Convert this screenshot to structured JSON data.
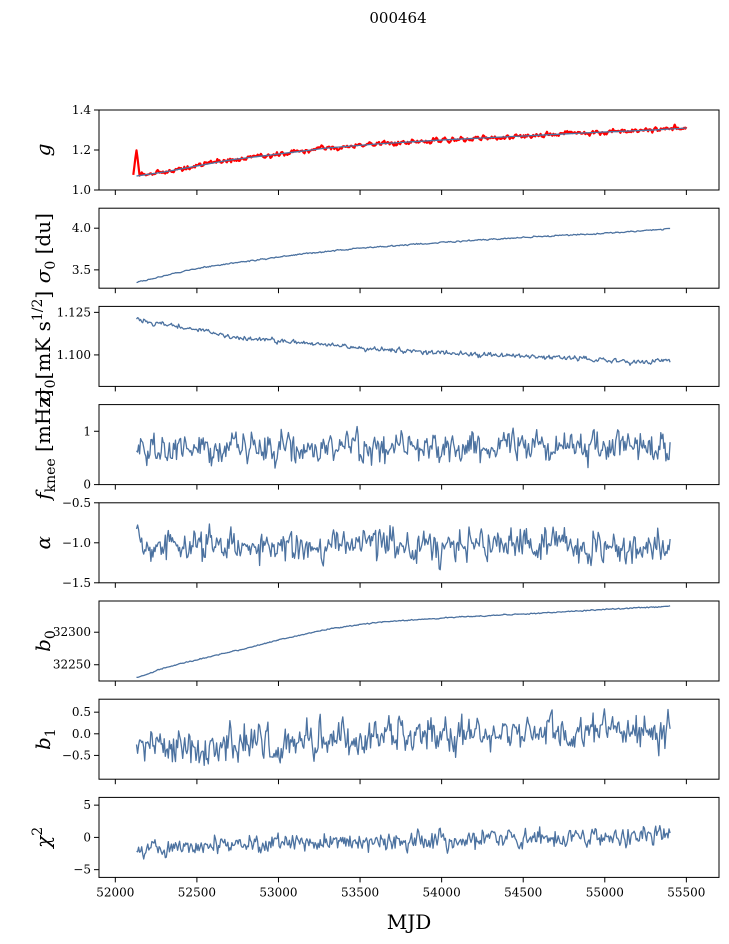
{
  "figure": {
    "title": "000464",
    "xlabel": "MJD",
    "xlim": [
      51900,
      55700
    ],
    "xticks": [
      52000,
      52500,
      53000,
      53500,
      54000,
      54500,
      55000,
      55500
    ],
    "line_color": "#4c72a0",
    "gain_fit_color": "#ff0000"
  },
  "chart_data": [
    {
      "type": "line",
      "ylabel_main": "g",
      "ylim": [
        1.0,
        1.4
      ],
      "yticks": [
        {
          "v": 1.0,
          "t": "1.0"
        },
        {
          "v": 1.2,
          "t": "1.2"
        },
        {
          "v": 1.4,
          "t": "1.4"
        }
      ],
      "series": [
        {
          "color": "#ff0000",
          "noise": 0.006,
          "x": [
            52110,
            52130,
            52150,
            52300,
            52500,
            52700,
            53000,
            53300,
            53600,
            54000,
            54500,
            55000,
            55300,
            55400,
            55500
          ],
          "y": [
            1.07,
            1.19,
            1.07,
            1.09,
            1.12,
            1.15,
            1.18,
            1.21,
            1.23,
            1.25,
            1.27,
            1.29,
            1.3,
            1.31,
            1.31
          ]
        },
        {
          "color": "#4c72a0",
          "noise": 0.0,
          "x": [
            52130,
            52300,
            52500,
            52700,
            53000,
            53300,
            53600,
            54000,
            54500,
            55000,
            55300,
            55500
          ],
          "y": [
            1.07,
            1.09,
            1.12,
            1.15,
            1.18,
            1.21,
            1.23,
            1.25,
            1.27,
            1.29,
            1.3,
            1.31
          ]
        }
      ]
    },
    {
      "type": "line",
      "ylabel_main": "σ",
      "ylabel_sub": "0",
      "ylabel_tail": " [du]",
      "ylim": [
        3.28,
        4.24
      ],
      "yticks": [
        {
          "v": 3.5,
          "t": "3.5"
        },
        {
          "v": 4.0,
          "t": "4.0"
        }
      ],
      "series": [
        {
          "color": "#4c72a0",
          "noise": 0.004,
          "x": [
            52130,
            52300,
            52500,
            52800,
            53100,
            53500,
            54000,
            54500,
            55000,
            55400
          ],
          "y": [
            3.35,
            3.43,
            3.52,
            3.6,
            3.68,
            3.76,
            3.83,
            3.89,
            3.94,
            3.99
          ]
        }
      ]
    },
    {
      "type": "line",
      "ylabel_main": "σ",
      "ylabel_sub": "0",
      "ylabel_tail": "[mK s",
      "ylabel_sup": "1/2",
      "ylabel_end": "]",
      "ylim": [
        1.0815,
        1.1285
      ],
      "yticks": [
        {
          "v": 1.1,
          "t": "1.100"
        },
        {
          "v": 1.125,
          "t": "1.125"
        }
      ],
      "series": [
        {
          "color": "#4c72a0",
          "noise": 0.0007,
          "x": [
            52130,
            52300,
            52500,
            52700,
            53000,
            53200,
            53500,
            53800,
            54000,
            54300,
            54600,
            54900,
            55100,
            55200,
            55400
          ],
          "y": [
            1.12,
            1.118,
            1.115,
            1.111,
            1.108,
            1.107,
            1.104,
            1.102,
            1.101,
            1.1,
            1.099,
            1.098,
            1.096,
            1.095,
            1.097
          ]
        }
      ]
    },
    {
      "type": "line",
      "ylabel_main": "f",
      "ylabel_sub": "knee",
      "ylabel_tail": " [mHz]",
      "ylim": [
        0,
        1.5
      ],
      "yticks": [
        {
          "v": 0,
          "t": "0"
        },
        {
          "v": 1,
          "t": "1"
        }
      ],
      "series": [
        {
          "color": "#4c72a0",
          "noise": 0.14,
          "x": [
            52130,
            55400
          ],
          "y": [
            0.7,
            0.7
          ]
        }
      ]
    },
    {
      "type": "line",
      "ylabel_main": "α",
      "ylim": [
        -1.5,
        -0.5
      ],
      "yticks": [
        {
          "v": -1.5,
          "t": "−1.5"
        },
        {
          "v": -1.0,
          "t": "−1.0"
        },
        {
          "v": -0.5,
          "t": "−0.5"
        }
      ],
      "series": [
        {
          "color": "#4c72a0",
          "noise": 0.1,
          "x": [
            52130,
            55400
          ],
          "y": [
            -1.03,
            -1.03
          ]
        }
      ]
    },
    {
      "type": "line",
      "ylabel_main": "b",
      "ylabel_sub": "0",
      "ylim": [
        32225,
        32348
      ],
      "yticks": [
        {
          "v": 32250,
          "t": "32250"
        },
        {
          "v": 32300,
          "t": "32300"
        }
      ],
      "series": [
        {
          "color": "#4c72a0",
          "noise": 0.4,
          "x": [
            52130,
            52300,
            52500,
            52800,
            53000,
            53300,
            53600,
            54000,
            54500,
            55000,
            55400
          ],
          "y": [
            32230,
            32245,
            32258,
            32275,
            32288,
            32305,
            32315,
            32322,
            32328,
            32335,
            32340
          ]
        }
      ]
    },
    {
      "type": "line",
      "ylabel_main": "b",
      "ylabel_sub": "1",
      "ylim": [
        -1.05,
        0.8
      ],
      "yticks": [
        {
          "v": -0.5,
          "t": "−0.5"
        },
        {
          "v": 0.0,
          "t": "0.0"
        },
        {
          "v": 0.5,
          "t": "0.5"
        }
      ],
      "series": [
        {
          "color": "#4c72a0",
          "noise": 0.2,
          "x": [
            52130,
            53000,
            54000,
            55400
          ],
          "y": [
            -0.35,
            -0.2,
            -0.05,
            0.05
          ]
        }
      ]
    },
    {
      "type": "line",
      "ylabel_main": "χ",
      "ylabel_sup": "2",
      "ylim": [
        -6.2,
        6.2
      ],
      "yticks": [
        {
          "v": -5,
          "t": "−5"
        },
        {
          "v": 0,
          "t": "0"
        },
        {
          "v": 5,
          "t": "5"
        }
      ],
      "series": [
        {
          "color": "#4c72a0",
          "noise": 0.7,
          "x": [
            52130,
            53000,
            54000,
            55400
          ],
          "y": [
            -1.8,
            -0.9,
            -0.4,
            0.2
          ]
        }
      ]
    }
  ]
}
